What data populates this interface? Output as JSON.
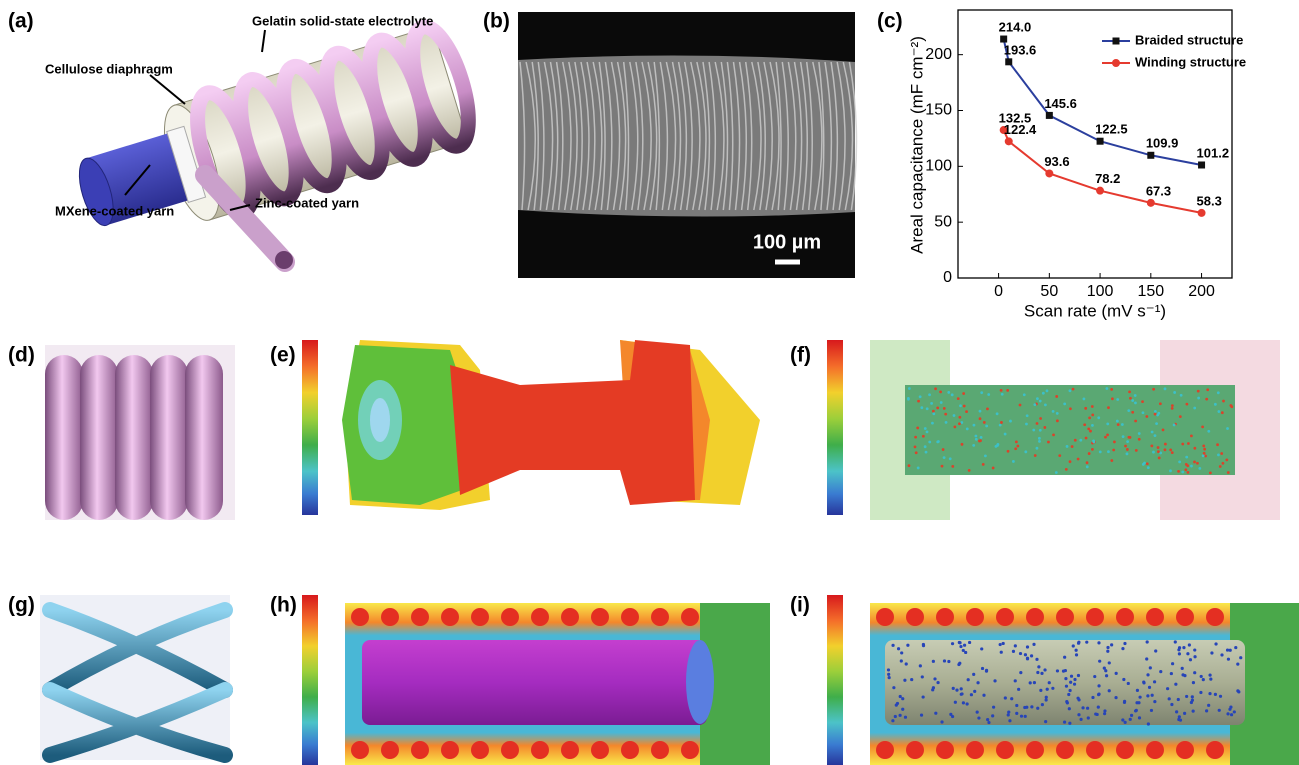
{
  "figure": {
    "panel_labels": [
      "(a)",
      "(b)",
      "(c)",
      "(d)",
      "(e)",
      "(f)",
      "(g)",
      "(h)",
      "(i)"
    ],
    "annotations_a": [
      "Gelatin solid-state electrolyte",
      "Cellulose diaphragm",
      "MXene-coated yarn",
      "Zinc-coated yarn"
    ],
    "scale_bar_b": "100 µm"
  },
  "chart_data": {
    "type": "line",
    "x_label": "Scan rate (mV s⁻¹)",
    "y_label": "Areal capacitance (mF cm⁻²)",
    "x": [
      5,
      10,
      50,
      100,
      150,
      200
    ],
    "series": [
      {
        "name": "Braided structure",
        "color": "#2b3f9e",
        "marker": "square",
        "marker_color": "#111111",
        "values": [
          214.0,
          193.6,
          145.6,
          122.5,
          109.9,
          101.2
        ],
        "value_labels": [
          "214.0",
          "193.6",
          "145.6",
          "122.5",
          "109.9",
          "101.2"
        ]
      },
      {
        "name": "Winding structure",
        "color": "#e53a2f",
        "marker": "circle",
        "marker_color": "#e53a2f",
        "values": [
          132.5,
          122.4,
          93.6,
          78.2,
          67.3,
          58.3
        ],
        "value_labels": [
          "132.5",
          "122.4",
          "93.6",
          "78.2",
          "67.3",
          "58.3"
        ]
      }
    ],
    "xlim": [
      -40,
      230
    ],
    "ylim": [
      0,
      240
    ],
    "xticks": [
      0,
      50,
      100,
      150,
      200
    ],
    "yticks": [
      0,
      50,
      100,
      150,
      200
    ],
    "legend": "upper right"
  }
}
